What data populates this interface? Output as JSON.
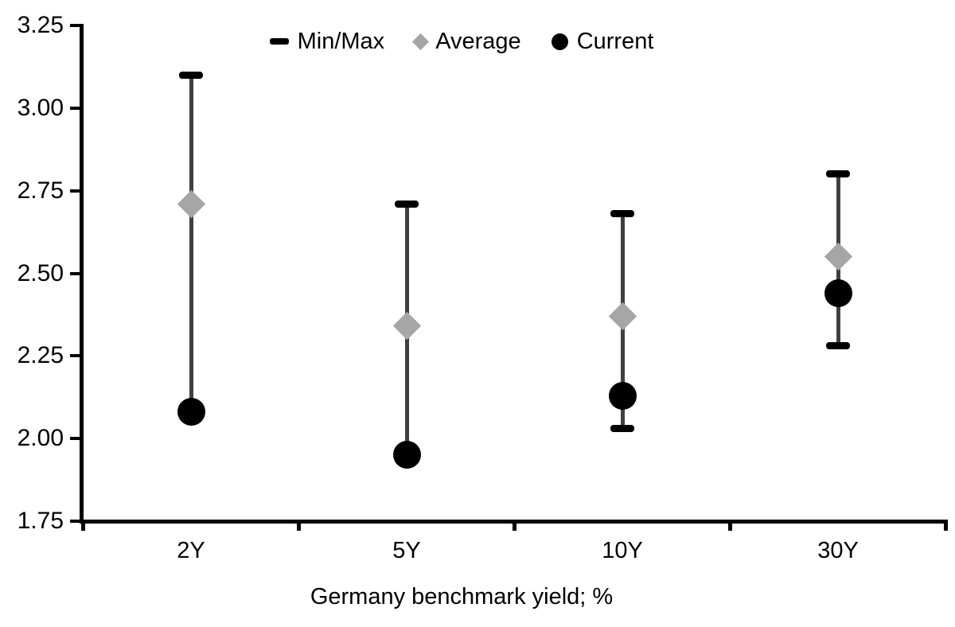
{
  "chart_data": {
    "type": "scatter",
    "variant": "min-max-range-with-average-and-current",
    "title": "",
    "xlabel": "Germany benchmark yield; %",
    "ylabel": "",
    "categories": [
      "2Y",
      "5Y",
      "10Y",
      "30Y"
    ],
    "ylim": [
      1.75,
      3.25
    ],
    "ytick_step": 0.25,
    "ytick_labels": [
      "3.25",
      "3.00",
      "2.75",
      "2.50",
      "2.25",
      "2.00",
      "1.75"
    ],
    "grid": false,
    "legend": {
      "position": "top-center",
      "items": [
        "Min/Max",
        "Average",
        "Current"
      ]
    },
    "series": [
      {
        "name": "Min/Max",
        "type": "range",
        "marker": "cap",
        "max": [
          3.1,
          2.71,
          2.68,
          2.8
        ],
        "min": [
          2.08,
          1.95,
          2.03,
          2.28
        ]
      },
      {
        "name": "Average",
        "type": "point",
        "marker": "diamond",
        "values": [
          2.71,
          2.34,
          2.37,
          2.55
        ]
      },
      {
        "name": "Current",
        "type": "point",
        "marker": "circle",
        "values": [
          2.08,
          1.95,
          2.13,
          2.44
        ]
      }
    ],
    "colors": {
      "background": "#ffffff",
      "axis": "#000000",
      "text": "#000000",
      "range_line": "#404040",
      "minmax_cap": "#000000",
      "average": "#a6a6a6",
      "current": "#000000"
    }
  }
}
